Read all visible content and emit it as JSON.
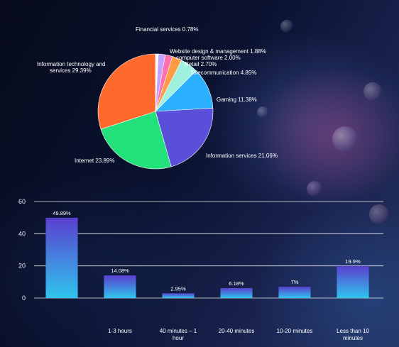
{
  "charts": {
    "pie": {
      "type": "pie",
      "labels": [
        "Financial services",
        "Website design & management",
        "computer software",
        "Retail",
        "Telecommunication",
        "Gaming",
        "Information services",
        "Internet",
        "Information technology and services"
      ],
      "values": [
        0.78,
        1.88,
        2.0,
        2.7,
        4.85,
        11.38,
        21.06,
        23.89,
        29.39
      ],
      "display_labels": [
        "Financial services 0.78%",
        "Website design & management 1.88%",
        "computer software 2.00%",
        "Retail 2.70%",
        "Telecommunication 4.85%",
        "Gaming 11.38%",
        "Information services 21.06%",
        "Internet 23.89%",
        "Information technology and services 29.39%"
      ],
      "colors": [
        "#ffffff",
        "#c4a0ff",
        "#ff6fb0",
        "#ff9a45",
        "#a0f0e0",
        "#2ab0ff",
        "#5a4fd8",
        "#22e07a",
        "#ff6a2c"
      ]
    },
    "bar": {
      "type": "bar",
      "categories": [
        "",
        "1-3 hours",
        "40 minutes – 1 hour",
        "20-40 minutes",
        "10-20 minutes",
        "Less than 10 minutes"
      ],
      "values": [
        49.89,
        14.08,
        2.95,
        6.18,
        7,
        19.9
      ],
      "value_labels": [
        "49.89%",
        "14.08%",
        "2.95%",
        "6.18%",
        "7%",
        "19.9%"
      ],
      "yticks": [
        0,
        20,
        40,
        60
      ],
      "ylim": [
        0,
        60
      ],
      "grid": true,
      "bar_gradient": [
        "#5b3fd0",
        "#2fc4ec"
      ]
    }
  },
  "chart_data": [
    {
      "type": "pie",
      "labels": [
        "Financial services",
        "Website design & management",
        "computer software",
        "Retail",
        "Telecommunication",
        "Gaming",
        "Information services",
        "Internet",
        "Information technology and services"
      ],
      "values": [
        0.78,
        1.88,
        2.0,
        2.7,
        4.85,
        11.38,
        21.06,
        23.89,
        29.39
      ]
    },
    {
      "type": "bar",
      "categories": [
        "",
        "1-3 hours",
        "40 minutes – 1 hour",
        "20-40 minutes",
        "10-20 minutes",
        "Less than 10 minutes"
      ],
      "values": [
        49.89,
        14.08,
        2.95,
        6.18,
        7,
        19.9
      ],
      "ylim": [
        0,
        60
      ],
      "grid": true
    }
  ]
}
